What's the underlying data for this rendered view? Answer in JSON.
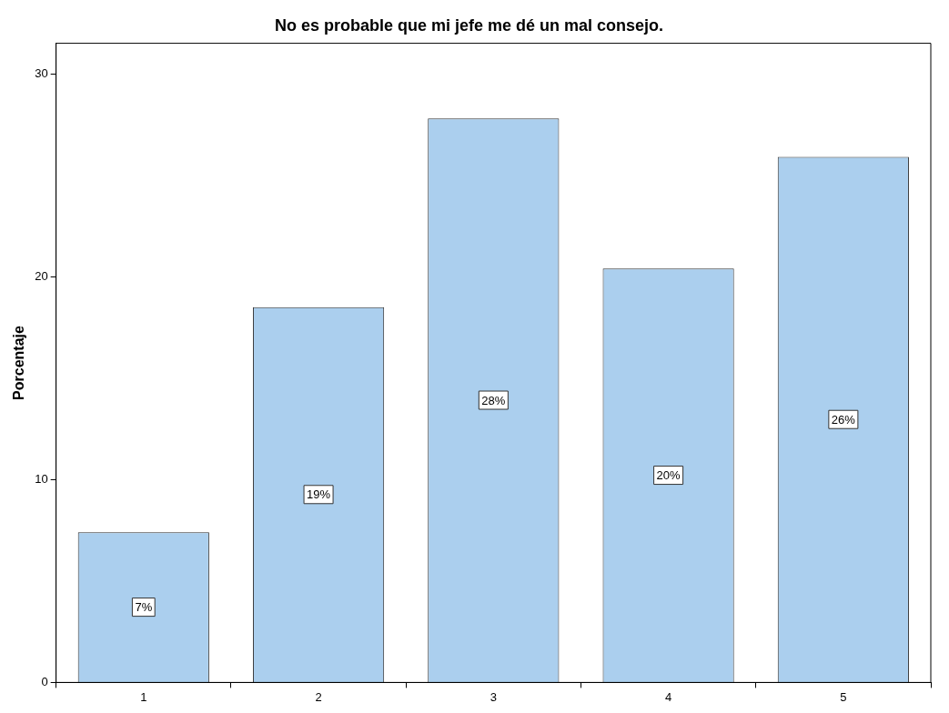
{
  "chart_data": {
    "type": "bar",
    "title": "No es probable que mi jefe me dé un mal consejo.",
    "ylabel": "Porcentaje",
    "categories": [
      "1",
      "2",
      "3",
      "4",
      "5"
    ],
    "values": [
      7.4,
      18.5,
      27.8,
      20.4,
      25.9
    ],
    "value_labels": [
      "7%",
      "19%",
      "28%",
      "20%",
      "26%"
    ],
    "color": "#abcfee",
    "ylim": [
      0,
      31.5
    ],
    "yticks": [
      0,
      10,
      20,
      30
    ],
    "grid": false,
    "legend": false
  }
}
